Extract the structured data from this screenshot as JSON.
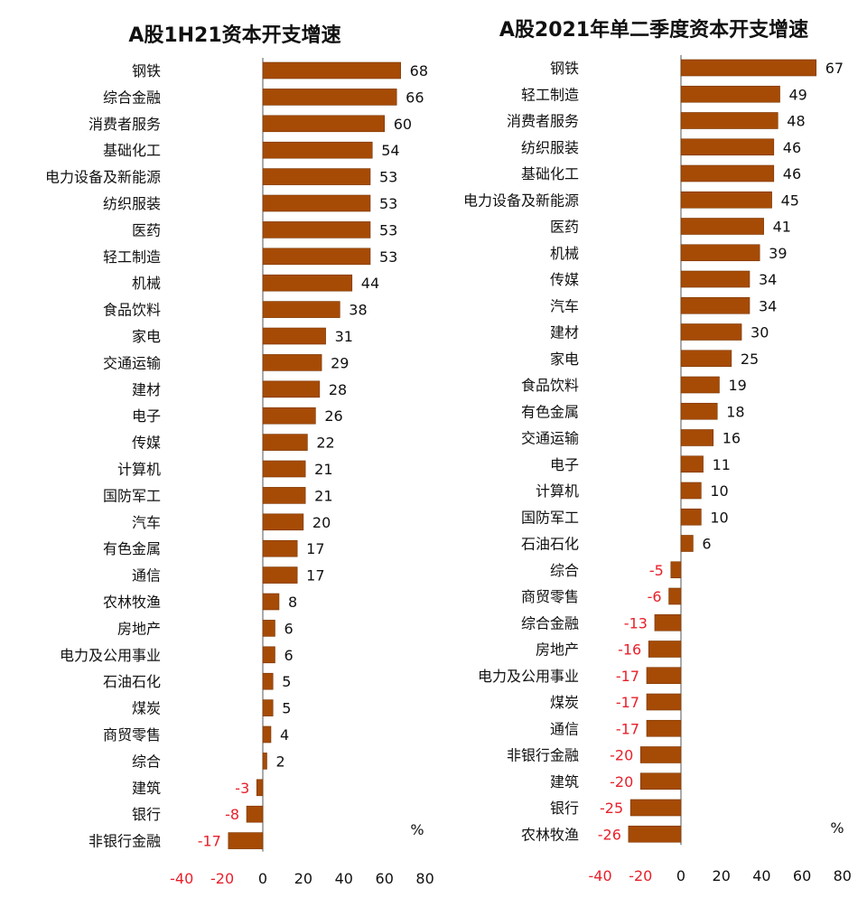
{
  "colors": {
    "bar": "#a64b06",
    "bar_stroke": "#7a3400",
    "negative_text": "#e8202a",
    "positive_text": "#111111",
    "axis": "#555555"
  },
  "chart_data": [
    {
      "type": "bar",
      "orientation": "horizontal",
      "title": "A股1H21资本开支增速",
      "unit": "%",
      "xlim": [
        -40,
        80
      ],
      "xticks": [
        -40,
        -20,
        0,
        20,
        40,
        60,
        80
      ],
      "grid": false,
      "categories": [
        "钢铁",
        "综合金融",
        "消费者服务",
        "基础化工",
        "电力设备及新能源",
        "纺织服装",
        "医药",
        "轻工制造",
        "机械",
        "食品饮料",
        "家电",
        "交通运输",
        "建材",
        "电子",
        "传媒",
        "计算机",
        "国防军工",
        "汽车",
        "有色金属",
        "通信",
        "农林牧渔",
        "房地产",
        "电力及公用事业",
        "石油石化",
        "煤炭",
        "商贸零售",
        "综合",
        "建筑",
        "银行",
        "非银行金融"
      ],
      "values": [
        68,
        66,
        60,
        54,
        53,
        53,
        53,
        53,
        44,
        38,
        31,
        29,
        28,
        26,
        22,
        21,
        21,
        20,
        17,
        17,
        8,
        6,
        6,
        5,
        5,
        4,
        2,
        -3,
        -8,
        -17
      ]
    },
    {
      "type": "bar",
      "orientation": "horizontal",
      "title": "A股2021年单二季度资本开支增速",
      "unit": "%",
      "xlim": [
        -40,
        80
      ],
      "xticks": [
        -40,
        -20,
        0,
        20,
        40,
        60,
        80
      ],
      "grid": false,
      "categories": [
        "钢铁",
        "轻工制造",
        "消费者服务",
        "纺织服装",
        "基础化工",
        "电力设备及新能源",
        "医药",
        "机械",
        "传媒",
        "汽车",
        "建材",
        "家电",
        "食品饮料",
        "有色金属",
        "交通运输",
        "电子",
        "计算机",
        "国防军工",
        "石油石化",
        "综合",
        "商贸零售",
        "综合金融",
        "房地产",
        "电力及公用事业",
        "煤炭",
        "通信",
        "非银行金融",
        "建筑",
        "银行",
        "农林牧渔"
      ],
      "values": [
        67,
        49,
        48,
        46,
        46,
        45,
        41,
        39,
        34,
        34,
        30,
        25,
        19,
        18,
        16,
        11,
        10,
        10,
        6,
        -5,
        -6,
        -13,
        -16,
        -17,
        -17,
        -17,
        -20,
        -20,
        -25,
        -26
      ]
    }
  ]
}
